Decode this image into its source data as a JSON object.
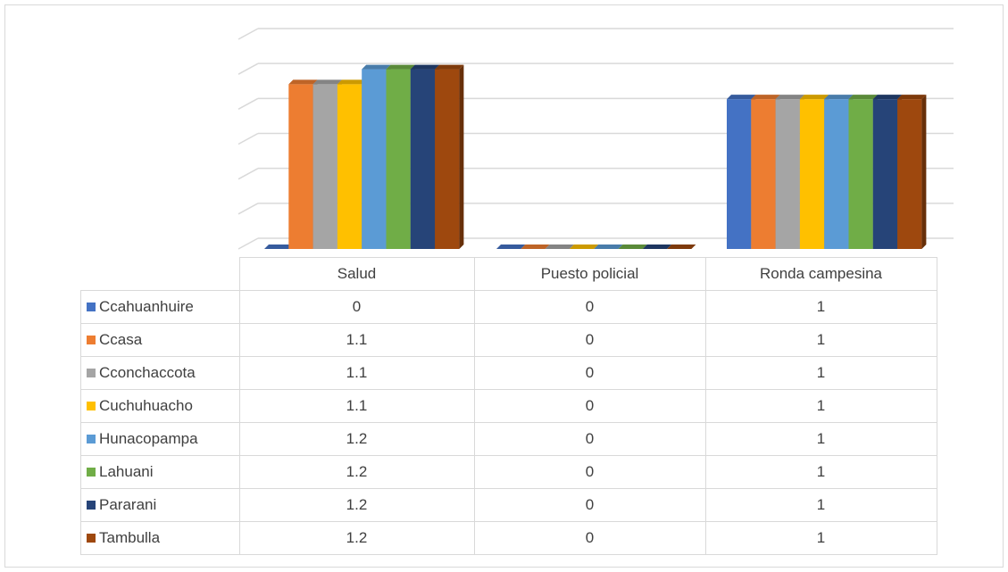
{
  "colors": {
    "Ccahuanhuire": "#4472c4",
    "Ccasa": "#ed7d31",
    "Cconchaccota": "#a5a5a5",
    "Cuchuhuacho": "#ffc000",
    "Hunacopampa": "#5b9bd5",
    "Lahuani": "#70ad47",
    "Pararani": "#264478",
    "Tambulla": "#9e480e"
  },
  "chart_data": {
    "type": "bar",
    "style": "3d-clustered-column-with-data-table",
    "categories": [
      "Salud",
      "Puesto policial",
      "Ronda campesina"
    ],
    "series": [
      {
        "name": "Ccahuanhuire",
        "values": [
          0,
          0,
          1
        ],
        "labels": [
          "0",
          "0",
          "1"
        ]
      },
      {
        "name": "Ccasa",
        "values": [
          1.1,
          0,
          1
        ],
        "labels": [
          "1.1",
          "0",
          "1"
        ]
      },
      {
        "name": "Cconchaccota",
        "values": [
          1.1,
          0,
          1
        ],
        "labels": [
          "1.1",
          "0",
          "1"
        ]
      },
      {
        "name": "Cuchuhuacho",
        "values": [
          1.1,
          0,
          1
        ],
        "labels": [
          "1.1",
          "0",
          "1"
        ]
      },
      {
        "name": "Hunacopampa",
        "values": [
          1.2,
          0,
          1
        ],
        "labels": [
          "1.2",
          "0",
          "1"
        ]
      },
      {
        "name": "Lahuani",
        "values": [
          1.2,
          0,
          1
        ],
        "labels": [
          "1.2",
          "0",
          "1"
        ]
      },
      {
        "name": "Pararani",
        "values": [
          1.2,
          0,
          1
        ],
        "labels": [
          "1.2",
          "0",
          "1"
        ]
      },
      {
        "name": "Tambulla",
        "values": [
          1.2,
          0,
          1
        ],
        "labels": [
          "1.2",
          "0",
          "1"
        ]
      }
    ],
    "ylim": [
      0,
      1.4
    ],
    "grid": true,
    "legend": "data-table-left",
    "title": "",
    "xlabel": "",
    "ylabel": ""
  }
}
